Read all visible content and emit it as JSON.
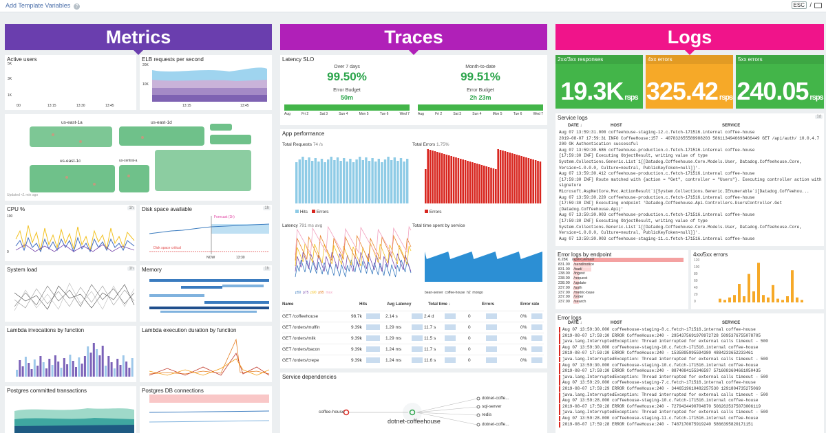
{
  "toolbar": {
    "add_template": "Add Template Variables",
    "esc": "ESC",
    "slash": "/"
  },
  "banners": {
    "metrics": "Metrics",
    "traces": "Traces",
    "logs": "Logs"
  },
  "widgets": {
    "active_users": "Active users",
    "elb": "ELB requests per second",
    "cpu": "CPU %",
    "disk": "Disk space available",
    "sysload": "System load",
    "memory": "Memory",
    "lambda_inv": "Lambda invocations by function",
    "lambda_dur": "Lambda execution duration by function",
    "pg_tx": "Postgres committed transactions",
    "pg_conn": "Postgres DB connections",
    "latency_slo": "Latency SLO",
    "app_perf": "App performance",
    "svc_deps": "Service dependencies",
    "service_logs": "Service logs",
    "err_by_ep": "Error logs by endpoint",
    "err4xx": "4xx/5xx errors",
    "error_logs": "Error logs"
  },
  "tags": {
    "h1": "1h",
    "h1d": "1d"
  },
  "hostmap": {
    "zones": [
      "us-east-1a",
      "us-east-1d",
      "us-east-1c",
      "us-central-a"
    ],
    "updated": "Updated <1 min ago"
  },
  "axes": {
    "au_y": [
      "5K",
      "4K",
      "3K",
      "2K",
      "1K"
    ],
    "elb_y": [
      "20K",
      "15K",
      "10K",
      "5K"
    ],
    "times": [
      ":00",
      "13:15",
      "13:30",
      "13:45"
    ],
    "cpu_y": [
      "100",
      "80",
      "60",
      "40",
      "20",
      "0"
    ],
    "disk_forecast": "Forecast (1h)",
    "disk_crit": "Disk space critical",
    "now": "NOW",
    "disk_t": "13:30"
  },
  "slo": {
    "p1": "Over 7 days",
    "v1": "99.50%",
    "eb": "Error Budget",
    "b1": "50m",
    "p2": "Month-to-date",
    "v2": "99.51%",
    "b2": "2h 23m",
    "days1": [
      "Aug",
      "Fri 2",
      "Sat 3",
      "Sun 4",
      "Mon 5",
      "Tue 6",
      "Wed 7"
    ]
  },
  "app": {
    "total_req": "Total Requests",
    "req_v": "74 /s",
    "total_err": "Total Errors",
    "err_v": "1.75%",
    "hits": "Hits",
    "errors": "Errors",
    "latency": "Latency",
    "lat_v": "791 ms avg",
    "time_by_svc": "Total time spent by service",
    "lat_leg": [
      "p50",
      "p75",
      "p90",
      "p95",
      "max"
    ],
    "svc_leg": [
      "bean-server",
      "coffee-house",
      "h2",
      "mongo"
    ],
    "req_y": [
      "8K",
      "6K",
      "4K",
      "2K",
      "0"
    ],
    "err_y": [
      "250",
      "200",
      "150",
      "100",
      "50",
      "0"
    ],
    "lat_y": [
      "4s",
      "3s",
      "2s",
      "1s"
    ],
    "svc_y": [
      "20",
      "15",
      "10",
      "5",
      "0"
    ]
  },
  "table": {
    "headers": [
      "Name",
      "Hits",
      "Avg Latency",
      "Total time ↓",
      "Errors",
      "Error rate"
    ],
    "rows": [
      [
        "GET /coffeehouse",
        "98.7k",
        "2.14 s",
        "2.4 d",
        "0",
        "0%"
      ],
      [
        "GET /orders/muffin",
        "9.39k",
        "1.29 ms",
        "11.7 s",
        "0",
        "0%"
      ],
      [
        "GET /orders/milk",
        "9.39k",
        "1.29 ms",
        "11.5 s",
        "0",
        "0%"
      ],
      [
        "GET /orders/bacon",
        "9.39k",
        "1.24 ms",
        "11.7 s",
        "0",
        "0%"
      ],
      [
        "GET /orders/crepe",
        "9.39k",
        "1.24 ms",
        "11.6 s",
        "0",
        "0%"
      ]
    ]
  },
  "deps": {
    "left": "coffee-house",
    "center": "dotnet-coffeehouse",
    "right": [
      "dotnet-coffe...",
      "sql-server",
      "redis",
      "dotnet-coffe..."
    ]
  },
  "logs": {
    "tiles": [
      {
        "title": "2xx/3xx responses",
        "value": "19.3K",
        "unit": "rsps",
        "color": "#43b549"
      },
      {
        "title": "4xx errors",
        "value": "325.42",
        "unit": "rsps",
        "color": "#f6a928"
      },
      {
        "title": "5xx errors",
        "value": "240.05",
        "unit": "rsps",
        "color": "#43b549"
      }
    ],
    "cols": [
      "DATE ↓",
      "HOST",
      "SERVICE"
    ],
    "service_rows": [
      "Aug 07 13:59:31.000   coffeehouse-staging-12.c.fetch-171516.internal   coffee-house",
      "2019-08-07 17:59:31 INFO CoffeeHouse:157 - 407832655589988203 5861134946696466449  GET /api/auth/ 10.0.4.7",
      "200 OK  Authentication successful",
      "Aug 07 13:59:30.686   coffeehouse-production.c.fetch-171516.internal   coffee-house",
      "[17:59:30 INF] Executing ObjectResult, writing value of type",
      "System.Collections.Generic.List`1[[Datadog.Coffeehouse.Core.Models.User, Datadog.Coffeehouse.Core,",
      "Version=1.0.0.0, Culture=neutral, PublicKeyToken=null]]'.",
      "Aug 07 13:59:30.412   coffeehouse-production.c.fetch-171516.internal   coffee-house",
      "[17:59:30 INF] Route matched with {action = \"Get\", controller = \"Users\"}. Executing controller action with",
      "signature",
      "Microsoft.AspNetCore.Mvc.ActionResult`1[System.Collections.Generic.IEnumerable`1[Datadog.Coffeehou...",
      "Aug 07 13:59:30.220   coffeehouse-production.c.fetch-171516.internal   coffee-house",
      "[17:59:30 INF] Executing endpoint 'Datadog.Coffeehouse.Api.Controllers.UsersController.Get",
      "(Datadog.Coffeehouse.Api)'",
      "Aug 07 13:59:30.003   coffeehouse-production.c.fetch-171516.internal   coffee-house",
      "[17:59:30 INF] Executing ObjectResult, writing value of type",
      "System.Collections.Generic.List`1[[Datadog.Coffeehouse.Core.Models.User, Datadog.Coffeehouse.Core,",
      "Version=1.0.0.0, Culture=neutral, PublicKeyToken=null]]'.",
      "Aug 07 13:59:30.003   coffeehouse-staging-11.c.fetch-171516.internal   coffee-house"
    ],
    "endpoints": [
      [
        "6.28K",
        "/api/v1/email/"
      ],
      [
        "831.00",
        "/send/notice"
      ],
      [
        "831.00",
        "/bad/"
      ],
      [
        "238.00",
        "/ingest"
      ],
      [
        "238.00",
        "/request"
      ],
      [
        "238.00",
        "/update"
      ],
      [
        "237.00",
        "/auth"
      ],
      [
        "237.00",
        "/metric-base"
      ],
      [
        "237.00",
        "/order"
      ],
      [
        "237.00",
        "/search"
      ]
    ],
    "err_y": [
      "120",
      "100",
      "80",
      "60",
      "40",
      "20",
      "0"
    ],
    "error_rows": [
      "Aug 07 13:59:30.000   coffeehouse-staging-8.c.fetch-171516.internal   coffee-house",
      "2019-08-07 17:59:30 ERROR CoffeeHouse:240 - 2954375691970972728 5095376755078705",
      "java.lang.InterruptedException: Thread interrupted for external calls timeout - 500",
      "Aug 07 13:59:30.000   coffeehouse-staging-10.c.fetch-171516.internal   coffee-house",
      "2019-08-07 17:59:30 ERROR CoffeeHouse:240 - 1535895995594380 4884233652233461",
      "java.lang.InterruptedException: Thread interrupted for external calls timeout - 500",
      "Aug 07 13:59:30.000   coffeehouse-staging-10.c.fetch-171516.internal   coffee-house",
      "2019-08-07 17:59:30 ERROR CoffeeHouse:240 - 8874084155346597 5716083604661050435",
      "java.lang.InterruptedException: Thread interrupted for external calls timeout - 500",
      "Aug 07 13:59:29.000   coffeehouse-staging-7.c.fetch-171516.internal   coffee-house",
      "2019-08-07 17:59:29 ERROR CoffeeHouse:240 - 3446519610482257530 1291804735275069",
      "java.lang.InterruptedException: Thread interrupted for external calls timeout - 500",
      "Aug 07 13:59:28.000   coffeehouse-staging-10.c.fetch-171516.internal   coffee-house",
      "2019-08-07 17:59:28 ERROR CoffeeHouse:240 - 7279434490704870 5062635375073006119",
      "java.lang.InterruptedException: Thread interrupted for external calls timeout - 500",
      "Aug 07 13:59:28.000   coffeehouse-staging-11.c.fetch-171516.internal   coffee-house",
      "2019-08-07 17:59:28 ERROR CoffeeHouse:240 - 7487170075919240 5866395820171151"
    ]
  },
  "colors": {
    "purple": "#6a3eae",
    "magenta": "#b020b8",
    "pink": "#f0148a",
    "green": "#43b549",
    "orange": "#f6a928"
  }
}
